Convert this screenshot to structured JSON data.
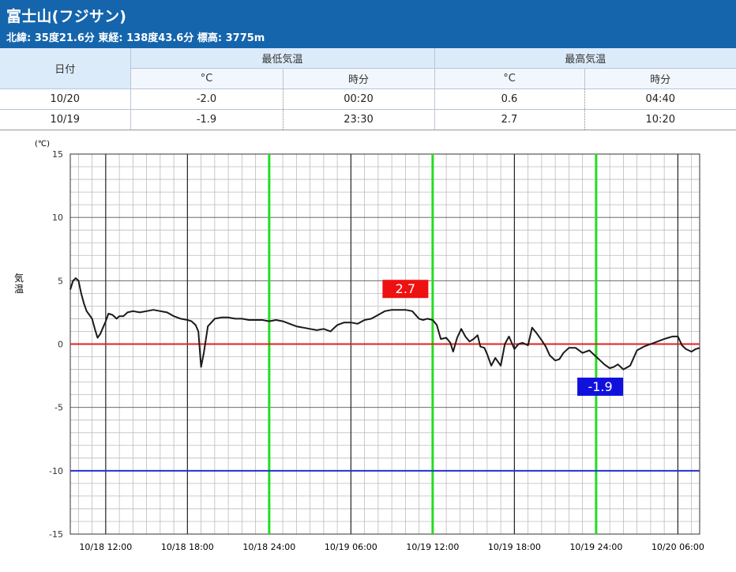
{
  "station": {
    "name": "富士山(フジサン)",
    "coords": "北緯: 35度21.6分 東経: 138度43.6分 標高: 3775m"
  },
  "summary_table": {
    "date_header": "日付",
    "min_header": "最低気温",
    "max_header": "最高気温",
    "unit_c": "°C",
    "unit_time": "時分",
    "rows": [
      {
        "date": "10/20",
        "min_temp": "-2.0",
        "min_time": "00:20",
        "max_temp": "0.6",
        "max_time": "04:40"
      },
      {
        "date": "10/19",
        "min_temp": "-1.9",
        "min_time": "23:30",
        "max_temp": "2.7",
        "max_time": "10:20"
      }
    ]
  },
  "chart_data": {
    "type": "line",
    "unit_label": "(℃)",
    "ylabel": "気温",
    "ylim": [
      -15,
      15
    ],
    "yticks": [
      15,
      10,
      5,
      0,
      -5,
      -10,
      -15
    ],
    "x_range_hours": [
      -2.6,
      43.6
    ],
    "xticks": [
      {
        "hour": 0,
        "label": "10/18 12:00"
      },
      {
        "hour": 6,
        "label": "10/18 18:00"
      },
      {
        "hour": 12,
        "label": "10/18 24:00"
      },
      {
        "hour": 18,
        "label": "10/19 06:00"
      },
      {
        "hour": 24,
        "label": "10/19 12:00"
      },
      {
        "hour": 30,
        "label": "10/19 18:00"
      },
      {
        "hour": 36,
        "label": "10/19 24:00"
      },
      {
        "hour": 42,
        "label": "10/20 06:00"
      }
    ],
    "green_lines_hours": [
      12,
      24,
      36
    ],
    "reference_lines": [
      {
        "value": 0,
        "color": "#e02020"
      },
      {
        "value": -10,
        "color": "#2233cc"
      }
    ],
    "max_label": {
      "text": "2.7",
      "hour": 22.0,
      "value": 2.7,
      "color": "#ee1111"
    },
    "min_label": {
      "text": "-1.9",
      "hour": 36.3,
      "value": -1.9,
      "color": "#1111dd"
    },
    "colors": {
      "line": "#1a1a1a",
      "green": "#22dd22",
      "major_grid": "#222222",
      "minor_grid": "#bbbbbb"
    },
    "series": [
      {
        "x": [
          -2.6,
          -2.4,
          -2.2,
          -2.0,
          -1.8,
          -1.6,
          -1.4,
          -1.2,
          -1.0,
          -0.8,
          -0.6,
          -0.4,
          -0.2,
          0.0,
          0.2,
          0.5,
          0.8,
          1.0,
          1.3,
          1.6,
          2.0,
          2.5,
          3.0,
          3.5,
          4.0,
          4.5,
          5.0,
          5.5,
          6.0,
          6.3,
          6.6,
          6.8,
          7.0,
          7.2,
          7.5,
          8.0,
          8.5,
          9.0,
          9.5,
          10.0,
          10.5,
          11.0,
          11.5,
          12.0,
          12.5,
          13.0,
          13.5,
          14.0,
          14.5,
          15.0,
          15.5,
          16.0,
          16.5,
          17.0,
          17.5,
          18.0,
          18.5,
          19.0,
          19.5,
          20.0,
          20.5,
          21.0,
          21.5,
          22.0,
          22.5,
          23.0,
          23.3,
          23.6,
          24.0,
          24.3,
          24.6,
          25.0,
          25.3,
          25.5,
          25.8,
          26.1,
          26.4,
          26.7,
          27.0,
          27.3,
          27.5,
          27.8,
          28.0,
          28.3,
          28.6,
          29.0,
          29.3,
          29.6,
          30.0,
          30.3,
          30.6,
          31.0,
          31.3,
          31.6,
          32.0,
          32.3,
          32.6,
          33.0,
          33.3,
          33.6,
          34.0,
          34.5,
          35.0,
          35.5,
          36.0,
          36.3,
          36.6,
          37.0,
          37.3,
          37.6,
          38.0,
          38.5,
          39.0,
          39.5,
          40.0,
          40.5,
          41.0,
          41.3,
          41.6,
          42.0,
          42.3,
          42.6,
          43.0,
          43.3,
          43.6
        ],
        "y": [
          4.3,
          5.0,
          5.2,
          5.0,
          4.0,
          3.2,
          2.6,
          2.3,
          2.0,
          1.2,
          0.5,
          0.8,
          1.3,
          1.8,
          2.4,
          2.3,
          2.0,
          2.2,
          2.2,
          2.5,
          2.6,
          2.5,
          2.6,
          2.7,
          2.6,
          2.5,
          2.2,
          2.0,
          1.9,
          1.8,
          1.5,
          1.0,
          -1.8,
          -0.7,
          1.4,
          2.0,
          2.1,
          2.1,
          2.0,
          2.0,
          1.9,
          1.9,
          1.9,
          1.8,
          1.9,
          1.8,
          1.6,
          1.4,
          1.3,
          1.2,
          1.1,
          1.2,
          1.0,
          1.5,
          1.7,
          1.7,
          1.6,
          1.9,
          2.0,
          2.3,
          2.6,
          2.7,
          2.7,
          2.7,
          2.6,
          2.0,
          1.9,
          2.0,
          1.9,
          1.5,
          0.4,
          0.5,
          0.1,
          -0.6,
          0.5,
          1.2,
          0.6,
          0.2,
          0.4,
          0.7,
          -0.2,
          -0.3,
          -0.8,
          -1.7,
          -1.1,
          -1.7,
          0.0,
          0.6,
          -0.4,
          0.0,
          0.1,
          -0.1,
          1.3,
          0.9,
          0.3,
          -0.2,
          -0.9,
          -1.3,
          -1.2,
          -0.7,
          -0.3,
          -0.3,
          -0.7,
          -0.5,
          -1.0,
          -1.3,
          -1.6,
          -1.9,
          -1.8,
          -1.6,
          -2.0,
          -1.7,
          -0.5,
          -0.2,
          0.0,
          0.2,
          0.4,
          0.5,
          0.6,
          0.6,
          -0.1,
          -0.4,
          -0.6,
          -0.4,
          -0.3
        ]
      }
    ]
  }
}
